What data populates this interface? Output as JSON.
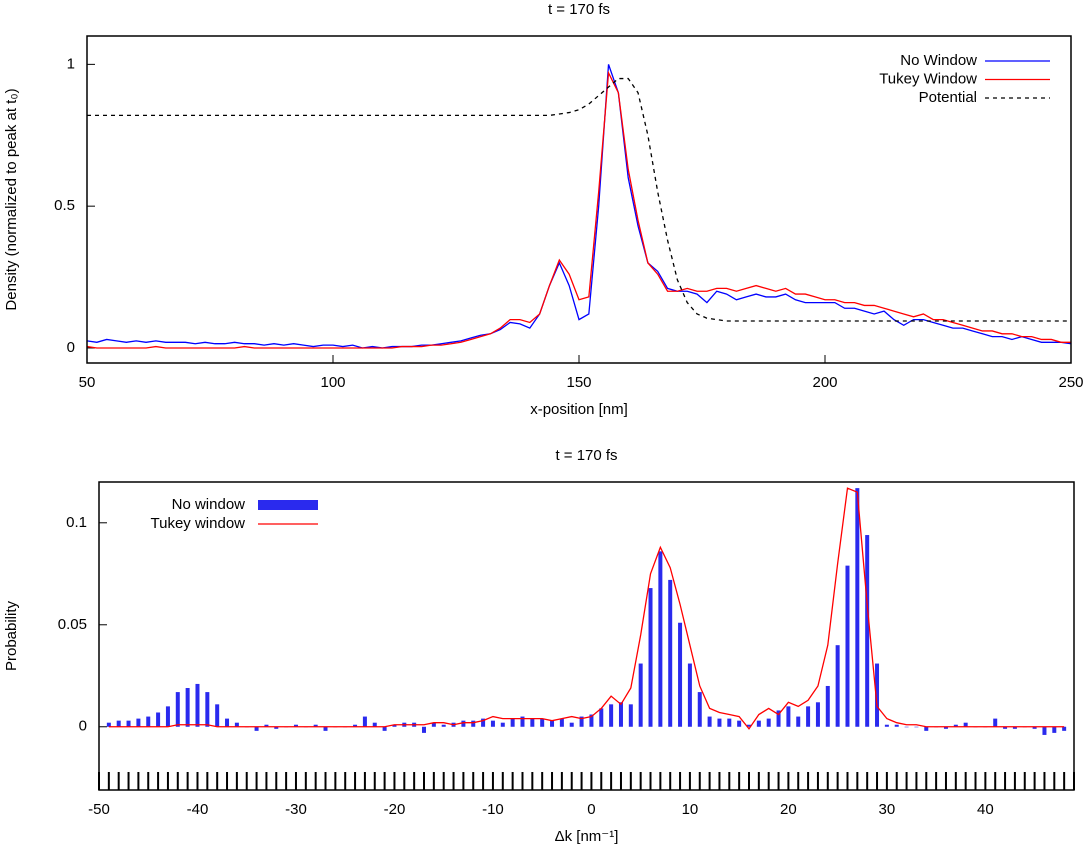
{
  "chart_data": [
    {
      "type": "line",
      "title": "t = 170 fs",
      "xlabel": "x-position [nm]",
      "ylabel": "Density (normalized to peak at t₀)",
      "xlim": [
        50,
        250
      ],
      "ylim": [
        -0.053,
        1.1
      ],
      "xticks": [
        50,
        100,
        150,
        200,
        250
      ],
      "yticks": [
        0,
        0.5,
        1
      ],
      "grid": false,
      "legend": "upper right",
      "x": [
        50,
        52,
        54,
        56,
        58,
        60,
        62,
        64,
        66,
        68,
        70,
        72,
        74,
        76,
        78,
        80,
        82,
        84,
        86,
        88,
        90,
        92,
        94,
        96,
        98,
        100,
        102,
        104,
        106,
        108,
        110,
        112,
        114,
        116,
        118,
        120,
        122,
        124,
        126,
        128,
        130,
        132,
        134,
        136,
        138,
        140,
        142,
        144,
        146,
        148,
        150,
        152,
        154,
        156,
        158,
        160,
        162,
        164,
        166,
        168,
        170,
        172,
        174,
        176,
        178,
        180,
        182,
        184,
        186,
        188,
        190,
        192,
        194,
        196,
        198,
        200,
        202,
        204,
        206,
        208,
        210,
        212,
        214,
        216,
        218,
        220,
        222,
        224,
        226,
        228,
        230,
        232,
        234,
        236,
        238,
        240,
        242,
        244,
        246,
        248,
        250
      ],
      "series": [
        {
          "name": "No Window",
          "color": "#0000ff",
          "linestyle": "solid",
          "values": [
            0.025,
            0.02,
            0.03,
            0.025,
            0.02,
            0.025,
            0.02,
            0.025,
            0.02,
            0.02,
            0.02,
            0.015,
            0.02,
            0.015,
            0.015,
            0.02,
            0.015,
            0.015,
            0.01,
            0.015,
            0.01,
            0.015,
            0.01,
            0.005,
            0.01,
            0.01,
            0.005,
            0.01,
            0,
            0.005,
            0,
            0.005,
            0.005,
            0.005,
            0.01,
            0.01,
            0.015,
            0.02,
            0.025,
            0.035,
            0.045,
            0.05,
            0.065,
            0.09,
            0.085,
            0.07,
            0.12,
            0.22,
            0.3,
            0.22,
            0.1,
            0.12,
            0.5,
            1.0,
            0.9,
            0.6,
            0.43,
            0.3,
            0.27,
            0.21,
            0.2,
            0.2,
            0.19,
            0.16,
            0.2,
            0.19,
            0.17,
            0.18,
            0.19,
            0.18,
            0.18,
            0.19,
            0.17,
            0.16,
            0.16,
            0.16,
            0.16,
            0.14,
            0.14,
            0.13,
            0.12,
            0.13,
            0.1,
            0.08,
            0.1,
            0.1,
            0.09,
            0.08,
            0.07,
            0.07,
            0.06,
            0.05,
            0.04,
            0.04,
            0.03,
            0.04,
            0.03,
            0.02,
            0.02,
            0.02,
            0.015
          ]
        },
        {
          "name": "Tukey Window",
          "color": "#ff0000",
          "linestyle": "solid",
          "values": [
            0.005,
            0,
            0,
            0,
            0,
            0,
            0,
            0.005,
            0,
            0,
            0,
            0,
            0,
            0,
            0,
            0,
            0.005,
            0,
            0,
            0,
            0,
            0,
            0,
            0,
            0,
            0,
            0,
            0,
            0,
            0,
            0,
            0,
            0.005,
            0.005,
            0.005,
            0.01,
            0.01,
            0.015,
            0.02,
            0.03,
            0.04,
            0.05,
            0.07,
            0.1,
            0.1,
            0.09,
            0.12,
            0.22,
            0.31,
            0.26,
            0.17,
            0.18,
            0.55,
            0.97,
            0.9,
            0.63,
            0.45,
            0.3,
            0.26,
            0.2,
            0.2,
            0.21,
            0.2,
            0.2,
            0.21,
            0.21,
            0.2,
            0.21,
            0.22,
            0.21,
            0.2,
            0.21,
            0.19,
            0.19,
            0.18,
            0.17,
            0.17,
            0.16,
            0.16,
            0.15,
            0.15,
            0.14,
            0.13,
            0.12,
            0.11,
            0.12,
            0.1,
            0.1,
            0.09,
            0.08,
            0.07,
            0.06,
            0.06,
            0.05,
            0.05,
            0.04,
            0.04,
            0.03,
            0.03,
            0.02,
            0.02
          ]
        },
        {
          "name": "Potential",
          "color": "#000000",
          "linestyle": "dashed",
          "values": [
            0.82,
            0.82,
            0.82,
            0.82,
            0.82,
            0.82,
            0.82,
            0.82,
            0.82,
            0.82,
            0.82,
            0.82,
            0.82,
            0.82,
            0.82,
            0.82,
            0.82,
            0.82,
            0.82,
            0.82,
            0.82,
            0.82,
            0.82,
            0.82,
            0.82,
            0.82,
            0.82,
            0.82,
            0.82,
            0.82,
            0.82,
            0.82,
            0.82,
            0.82,
            0.82,
            0.82,
            0.82,
            0.82,
            0.82,
            0.82,
            0.82,
            0.82,
            0.82,
            0.82,
            0.82,
            0.82,
            0.82,
            0.82,
            0.825,
            0.83,
            0.84,
            0.86,
            0.89,
            0.92,
            0.95,
            0.95,
            0.9,
            0.75,
            0.55,
            0.38,
            0.24,
            0.16,
            0.12,
            0.105,
            0.1,
            0.095,
            0.095,
            0.095,
            0.095,
            0.095,
            0.095,
            0.095,
            0.095,
            0.095,
            0.095,
            0.095,
            0.095,
            0.095,
            0.095,
            0.095,
            0.095,
            0.095,
            0.095,
            0.095,
            0.095,
            0.095,
            0.095,
            0.095,
            0.095,
            0.095,
            0.095,
            0.095,
            0.095,
            0.095,
            0.095,
            0.095,
            0.095,
            0.095,
            0.095,
            0.095,
            0.095
          ]
        }
      ]
    },
    {
      "type": "bar",
      "title": "t = 170 fs",
      "xlabel": "Δk [nm⁻¹]",
      "ylabel": "Probability",
      "xlim": [
        -50,
        49
      ],
      "ylim": [
        -0.031,
        0.12
      ],
      "xticks": [
        -50,
        -40,
        -30,
        -20,
        -10,
        0,
        10,
        20,
        30,
        40
      ],
      "yticks": [
        0,
        0.05,
        0.1
      ],
      "xminor_step": 1,
      "grid": false,
      "legend": "upper left",
      "x": [
        -49,
        -48,
        -47,
        -46,
        -45,
        -44,
        -43,
        -42,
        -41,
        -40,
        -39,
        -38,
        -37,
        -36,
        -35,
        -34,
        -33,
        -32,
        -31,
        -30,
        -29,
        -28,
        -27,
        -26,
        -25,
        -24,
        -23,
        -22,
        -21,
        -20,
        -19,
        -18,
        -17,
        -16,
        -15,
        -14,
        -13,
        -12,
        -11,
        -10,
        -9,
        -8,
        -7,
        -6,
        -5,
        -4,
        -3,
        -2,
        -1,
        0,
        1,
        2,
        3,
        4,
        5,
        6,
        7,
        8,
        9,
        10,
        11,
        12,
        13,
        14,
        15,
        16,
        17,
        18,
        19,
        20,
        21,
        22,
        23,
        24,
        25,
        26,
        27,
        28,
        29,
        30,
        31,
        32,
        33,
        34,
        35,
        36,
        37,
        38,
        39,
        40,
        41,
        42,
        43,
        44,
        45,
        46,
        47,
        48
      ],
      "series": [
        {
          "name": "No window",
          "color": "#2a2aee",
          "type": "bar",
          "values": [
            0.002,
            0.003,
            0.003,
            0.004,
            0.005,
            0.007,
            0.01,
            0.017,
            0.019,
            0.021,
            0.017,
            0.011,
            0.004,
            0.002,
            0,
            -0.002,
            0.001,
            -0.001,
            0,
            0.001,
            0,
            0.001,
            -0.002,
            0,
            0,
            0.001,
            0.005,
            0.002,
            -0.002,
            0.001,
            0.002,
            0.002,
            -0.003,
            0.002,
            0.001,
            0.002,
            0.003,
            0.003,
            0.004,
            0.003,
            0.002,
            0.004,
            0.005,
            0.004,
            0.004,
            0.003,
            0.004,
            0.002,
            0.005,
            0.006,
            0.009,
            0.011,
            0.012,
            0.011,
            0.031,
            0.068,
            0.086,
            0.072,
            0.051,
            0.031,
            0.017,
            0.005,
            0.004,
            0.004,
            0.003,
            0.001,
            0.003,
            0.004,
            0.008,
            0.01,
            0.005,
            0.01,
            0.012,
            0.02,
            0.04,
            0.079,
            0.117,
            0.094,
            0.031,
            0.001,
            0.001,
            0,
            0,
            -0.002,
            0,
            -0.001,
            0.001,
            0.002,
            0,
            0,
            0.004,
            -0.001,
            -0.001,
            0,
            -0.001,
            -0.004,
            -0.003,
            -0.002
          ]
        },
        {
          "name": "Tukey window",
          "color": "#ff0000",
          "type": "line",
          "values": [
            0,
            0,
            0,
            0,
            0,
            0,
            0,
            0.001,
            0.001,
            0.001,
            0.001,
            0,
            0,
            0,
            0,
            0,
            0,
            0,
            0,
            0,
            0,
            0,
            0,
            0,
            0,
            0,
            0,
            0,
            0,
            0.001,
            0.001,
            0.001,
            0.001,
            0.002,
            0.002,
            0.001,
            0.002,
            0.002,
            0.003,
            0.005,
            0.004,
            0.004,
            0.004,
            0.004,
            0.004,
            0.003,
            0.004,
            0.005,
            0.004,
            0.005,
            0.009,
            0.015,
            0.011,
            0.019,
            0.045,
            0.075,
            0.088,
            0.078,
            0.06,
            0.04,
            0.02,
            0.009,
            0.007,
            0.006,
            0.005,
            -0.001,
            0.006,
            0.009,
            0.006,
            0.012,
            0.01,
            0.013,
            0.02,
            0.04,
            0.08,
            0.117,
            0.115,
            0.06,
            0.01,
            0.004,
            0.002,
            0.001,
            0.001,
            0,
            0,
            0,
            0,
            0,
            0,
            0,
            0,
            0,
            0,
            0,
            0,
            0,
            0,
            0
          ]
        }
      ]
    }
  ]
}
